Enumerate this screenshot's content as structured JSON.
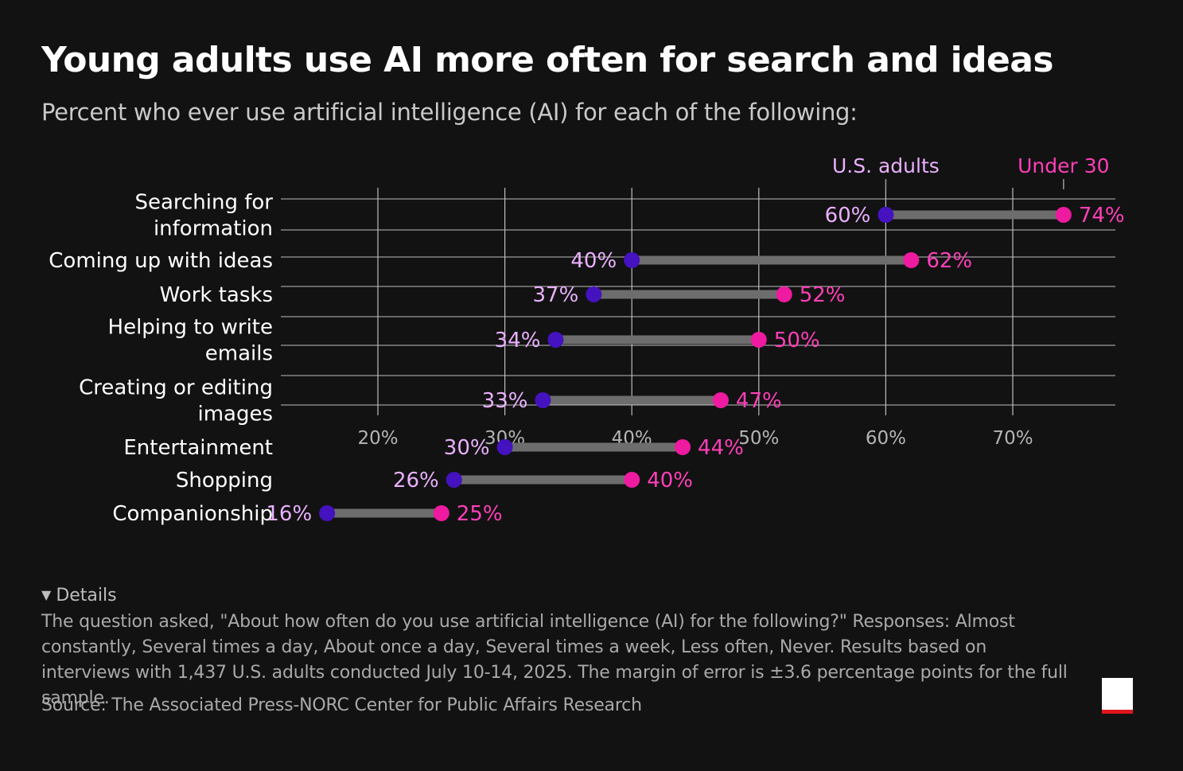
{
  "header": {
    "title": "Young adults use AI more often for search and ideas",
    "subtitle": "Percent who ever use artificial intelligence (AI) for each of the following:"
  },
  "colors": {
    "background": "#121212",
    "us_adults": "#4512bf",
    "under_30": "#ee1aa0",
    "us_adults_label": "#eab0ff",
    "under_30_label": "#ff3fb8",
    "connector": "#6d6d6d",
    "gridline": "#bdbdbd",
    "logo_accent": "#e0161c"
  },
  "chart_data": {
    "type": "dot-plot",
    "title": "Young adults use AI more often for search and ideas",
    "subtitle": "Percent who ever use artificial intelligence (AI) for each of the following:",
    "categories": [
      "Searching for information",
      "Coming up with ideas",
      "Work tasks",
      "Helping to write emails",
      "Creating or editing images",
      "Entertainment",
      "Shopping",
      "Companionship"
    ],
    "category_lines": [
      [
        "Searching for",
        "information"
      ],
      [
        "Coming up with ideas"
      ],
      [
        "Work tasks"
      ],
      [
        "Helping to write",
        "emails"
      ],
      [
        "Creating or editing",
        "images"
      ],
      [
        "Entertainment"
      ],
      [
        "Shopping"
      ],
      [
        "Companionship"
      ]
    ],
    "series": [
      {
        "name": "U.S. adults",
        "values": [
          60,
          40,
          37,
          34,
          33,
          30,
          26,
          16
        ]
      },
      {
        "name": "Under 30",
        "values": [
          74,
          62,
          52,
          50,
          47,
          44,
          40,
          25
        ]
      }
    ],
    "x_ticks": [
      20,
      30,
      40,
      50,
      60,
      70
    ],
    "x_tick_labels": [
      "20%",
      "30%",
      "40%",
      "50%",
      "60%",
      "70%"
    ],
    "xlim": [
      12.4,
      80.7
    ],
    "value_suffix": "%",
    "grid": true,
    "legend": "top-right, labels above the first row"
  },
  "details": {
    "toggle_label": "Details",
    "text": "The question asked, \"About how often do you use artificial intelligence (AI) for the following?\" Responses: Almost constantly, Several times a day, About once a day, Several times a week, Less often, Never. Results based on interviews with 1,437 U.S. adults conducted July 10-14, 2025. The margin of error is ±3.6 percentage points for the full sample."
  },
  "source": "Source: The Associated Press-NORC Center for Public Affairs Research"
}
